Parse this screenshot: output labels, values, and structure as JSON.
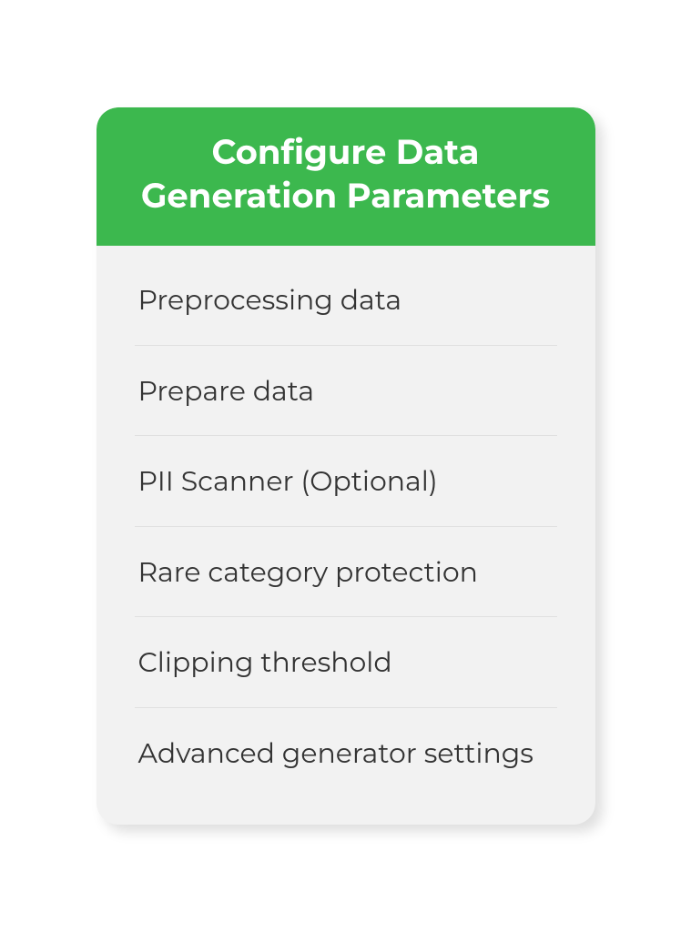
{
  "card": {
    "header": "Configure Data Generation Parameters",
    "header_bg_color": "#3cb84e",
    "header_text_color": "#ffffff",
    "header_fontsize": 37,
    "header_fontweight": 700,
    "body_bg_color": "#f2f2f2",
    "border_radius": 24,
    "shadow_color": "rgba(0,0,0,0.13)",
    "item_fontsize": 30,
    "item_text_color": "#333333",
    "divider_color": "#e0e0e0",
    "items": [
      {
        "label": "Preprocessing data"
      },
      {
        "label": "Prepare data"
      },
      {
        "label": "PII Scanner (Optional)"
      },
      {
        "label": "Rare category protection"
      },
      {
        "label": "Clipping threshold"
      },
      {
        "label": "Advanced generator settings"
      }
    ]
  }
}
